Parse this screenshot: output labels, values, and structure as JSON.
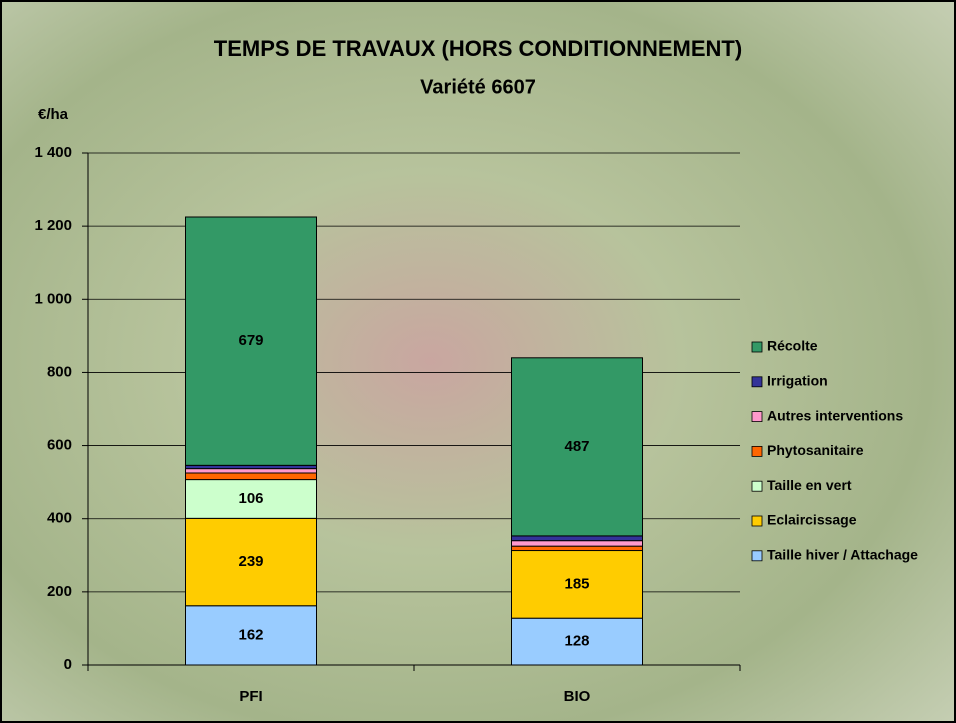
{
  "chart_data": {
    "type": "stacked_bar",
    "title": "TEMPS DE TRAVAUX (HORS CONDITIONNEMENT)",
    "subtitle": "Variété 6607",
    "y_label": "€/ha",
    "categories": [
      "PFI",
      "BIO"
    ],
    "series": [
      {
        "name": "Taille hiver / Attachage",
        "color": "#99ccff",
        "values": [
          162,
          128
        ],
        "data_labels": true
      },
      {
        "name": "Eclaircissage",
        "color": "#ffcc00",
        "values": [
          239,
          185
        ],
        "data_labels": true
      },
      {
        "name": "Taille en vert",
        "color": "#ccffcc",
        "values": [
          106,
          0
        ],
        "data_labels": true
      },
      {
        "name": "Phytosanitaire",
        "color": "#ff6600",
        "values": [
          18,
          12
        ],
        "data_labels": false
      },
      {
        "name": "Autres interventions",
        "color": "#ff99cc",
        "values": [
          12,
          15
        ],
        "data_labels": false
      },
      {
        "name": "Irrigation",
        "color": "#333399",
        "values": [
          9,
          13
        ],
        "data_labels": false
      },
      {
        "name": "Récolte",
        "color": "#339966",
        "values": [
          679,
          487
        ],
        "data_labels": true
      }
    ],
    "ylim": [
      0,
      1400
    ],
    "yticks": [
      0,
      200,
      400,
      600,
      800,
      {
        "value": 1000,
        "label": "1 000"
      },
      {
        "value": 1200,
        "label": "1 200"
      },
      {
        "value": 1400,
        "label": "1 400"
      }
    ],
    "grid": true,
    "legend": "right"
  }
}
